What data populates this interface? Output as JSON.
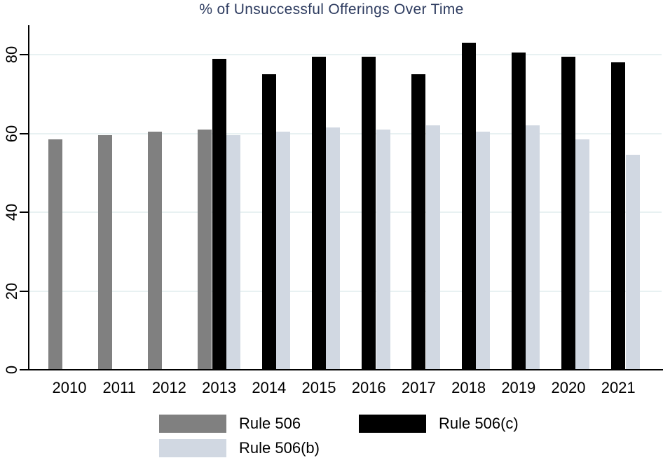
{
  "chart_data": {
    "type": "bar",
    "title": "% of Unsuccessful Offerings Over Time",
    "categories": [
      "2010",
      "2011",
      "2012",
      "2013",
      "2014",
      "2015",
      "2016",
      "2017",
      "2018",
      "2019",
      "2020",
      "2021"
    ],
    "series": [
      {
        "name": "Rule 506",
        "color": "#808080",
        "values": [
          58.5,
          59.5,
          60.5,
          61,
          null,
          null,
          null,
          null,
          null,
          null,
          null,
          null
        ]
      },
      {
        "name": "Rule 506(c)",
        "color": "#000000",
        "values": [
          null,
          null,
          null,
          79,
          75,
          79.5,
          79.5,
          75,
          83,
          80.5,
          79.5,
          78
        ]
      },
      {
        "name": "Rule 506(b)",
        "color": "#d1d8e2",
        "values": [
          null,
          null,
          null,
          59.5,
          60.5,
          61.5,
          61,
          62,
          60.5,
          62,
          58.5,
          54.5
        ]
      }
    ],
    "xlabel": "",
    "ylabel": "",
    "ylim": [
      0,
      85
    ],
    "y_ticks": [
      0,
      20,
      40,
      60,
      80
    ],
    "grid": true,
    "legend_position": "bottom"
  },
  "colors": {
    "title_text": "#2e3c60",
    "gridline": "#e8f1f2",
    "axis": "#000000",
    "background": "#ffffff"
  }
}
